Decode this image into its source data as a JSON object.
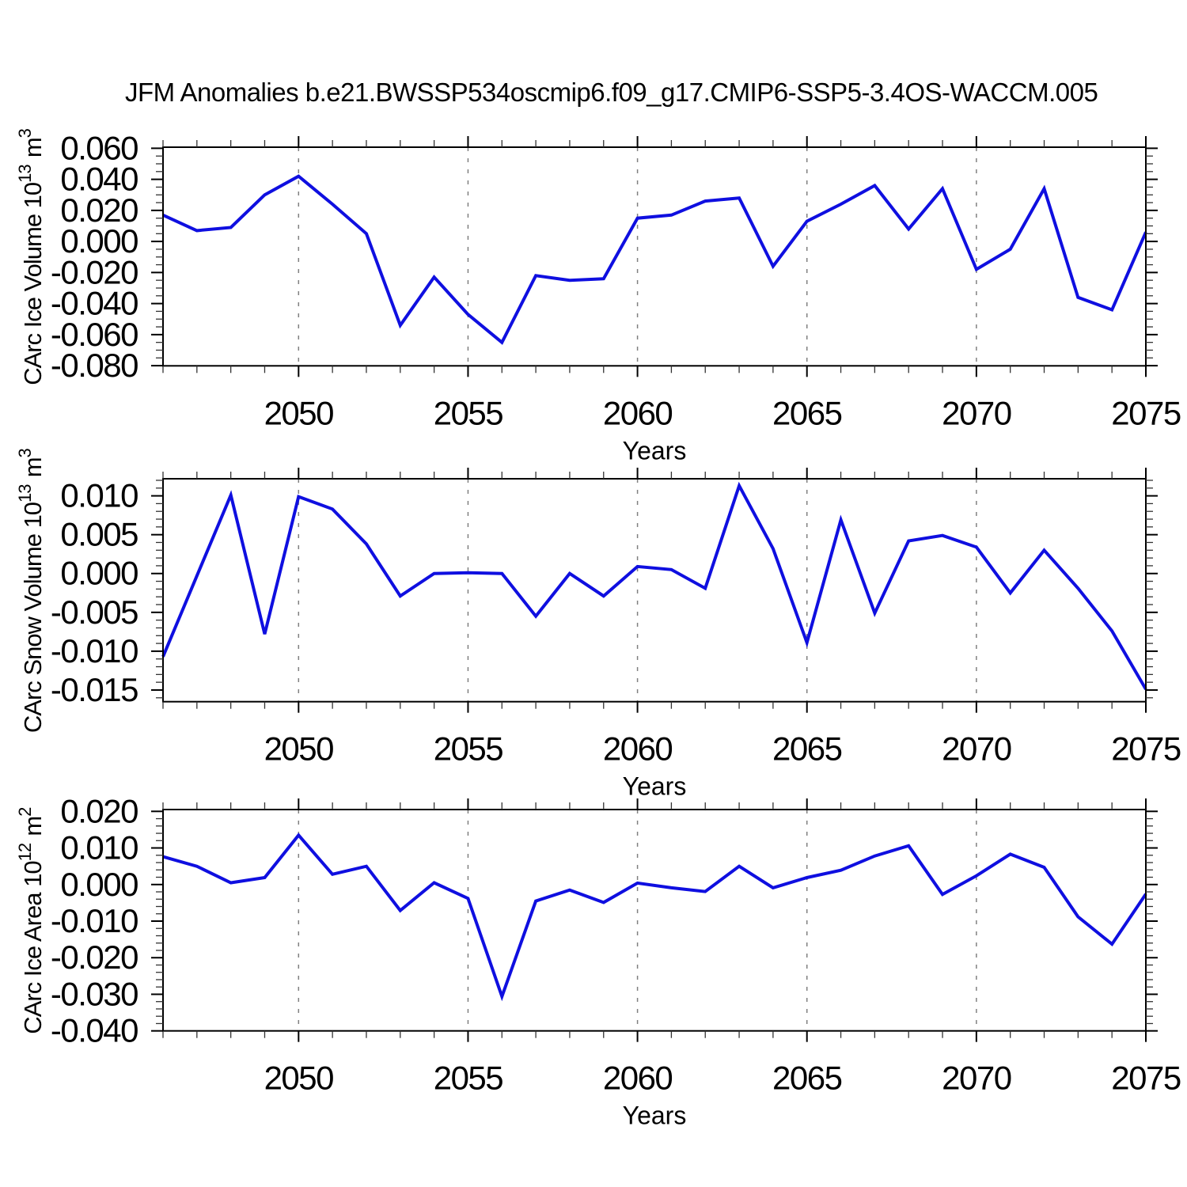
{
  "title": "JFM Anomalies b.e21.BWSSP534oscmip6.f09_g17.CMIP6-SSP5-3.4OS-WACCM.005",
  "colors": {
    "line": "#0f0fe0",
    "grid": "#808080",
    "frame": "#000000",
    "minor_tick": "#333333",
    "text": "#000000",
    "background": "#ffffff"
  },
  "x_axis": {
    "label": "Years",
    "xlim": [
      2046,
      2075
    ],
    "major_ticks": [
      2050,
      2055,
      2060,
      2065,
      2070,
      2075
    ],
    "major_tick_labels": [
      "2050",
      "2055",
      "2060",
      "2065",
      "2070",
      "2075"
    ],
    "grid_years": [
      2050,
      2055,
      2060,
      2065,
      2070
    ],
    "minor_tick_step": 1
  },
  "years": [
    2046,
    2047,
    2048,
    2049,
    2050,
    2051,
    2052,
    2053,
    2054,
    2055,
    2056,
    2057,
    2058,
    2059,
    2060,
    2061,
    2062,
    2063,
    2064,
    2065,
    2066,
    2067,
    2068,
    2069,
    2070,
    2071,
    2072,
    2073,
    2074,
    2075
  ],
  "chart_data": [
    {
      "type": "line",
      "name": "ice-volume",
      "ylabel_text": "CArc Ice Volume 10^13 m^3",
      "ylabel_parts": [
        [
          "t",
          "CArc Ice Volume 10"
        ],
        [
          "s",
          "13"
        ],
        [
          "t",
          " m"
        ],
        [
          "s",
          "3"
        ]
      ],
      "ylim": [
        -0.0801,
        0.0607
      ],
      "y_ticks": [
        0.06,
        0.04,
        0.02,
        0.0,
        -0.02,
        -0.04,
        -0.06,
        -0.08
      ],
      "y_tick_labels": [
        "0.060",
        "0.040",
        "0.020",
        "0.000",
        "-0.020",
        "-0.040",
        "-0.060",
        "-0.080"
      ],
      "y_minor_step": 0.005,
      "values": [
        0.017,
        0.007,
        0.009,
        0.03,
        0.042,
        0.024,
        0.005,
        -0.054,
        -0.023,
        -0.047,
        -0.065,
        -0.022,
        -0.025,
        -0.024,
        0.015,
        0.017,
        0.026,
        0.028,
        -0.016,
        0.013,
        0.024,
        0.036,
        0.008,
        0.034,
        -0.018,
        -0.005,
        0.034,
        -0.036,
        -0.044,
        0.006
      ]
    },
    {
      "type": "line",
      "name": "snow-volume",
      "ylabel_text": "CArc Snow Volume 10^13 m^3",
      "ylabel_parts": [
        [
          "t",
          "CArc Snow Volume 10"
        ],
        [
          "s",
          "13"
        ],
        [
          "t",
          " m"
        ],
        [
          "s",
          "3"
        ]
      ],
      "ylim": [
        -0.0165,
        0.0122
      ],
      "y_ticks": [
        0.01,
        0.005,
        0.0,
        -0.005,
        -0.01,
        -0.015
      ],
      "y_tick_labels": [
        "0.010",
        "0.005",
        "0.000",
        "-0.005",
        "-0.010",
        "-0.015"
      ],
      "y_minor_step": 0.001,
      "values": [
        -0.0107,
        -0.0003,
        0.0101,
        -0.0078,
        0.0099,
        0.0083,
        0.0038,
        -0.0029,
        0.0,
        0.0001,
        0.0,
        -0.0055,
        0.0,
        -0.0029,
        0.0009,
        0.0005,
        -0.0019,
        0.0113,
        0.0032,
        -0.0089,
        0.0069,
        -0.0051,
        0.0042,
        0.0049,
        0.0034,
        -0.0025,
        0.003,
        -0.0019,
        -0.0074,
        -0.0149
      ]
    },
    {
      "type": "line",
      "name": "ice-area",
      "ylabel_text": "CArc Ice Area 10^12 m^2",
      "ylabel_parts": [
        [
          "t",
          "CArc Ice Area 10"
        ],
        [
          "s",
          "12"
        ],
        [
          "t",
          " m"
        ],
        [
          "s",
          "2"
        ]
      ],
      "ylim": [
        -0.04,
        0.0205
      ],
      "y_ticks": [
        0.02,
        0.01,
        0.0,
        -0.01,
        -0.02,
        -0.03,
        -0.04
      ],
      "y_tick_labels": [
        "0.020",
        "0.010",
        "0.000",
        "-0.010",
        "-0.020",
        "-0.030",
        "-0.040"
      ],
      "y_minor_step": 0.002,
      "values": [
        0.0076,
        0.005,
        0.0005,
        0.0019,
        0.0135,
        0.0028,
        0.005,
        -0.0071,
        0.0005,
        -0.0038,
        -0.0306,
        -0.0045,
        -0.0015,
        -0.0049,
        0.0004,
        -0.0009,
        -0.0019,
        0.005,
        -0.0009,
        0.0019,
        0.0039,
        0.0078,
        0.0106,
        -0.0027,
        0.0024,
        0.0083,
        0.0047,
        -0.0088,
        -0.0163,
        -0.0026
      ]
    }
  ]
}
